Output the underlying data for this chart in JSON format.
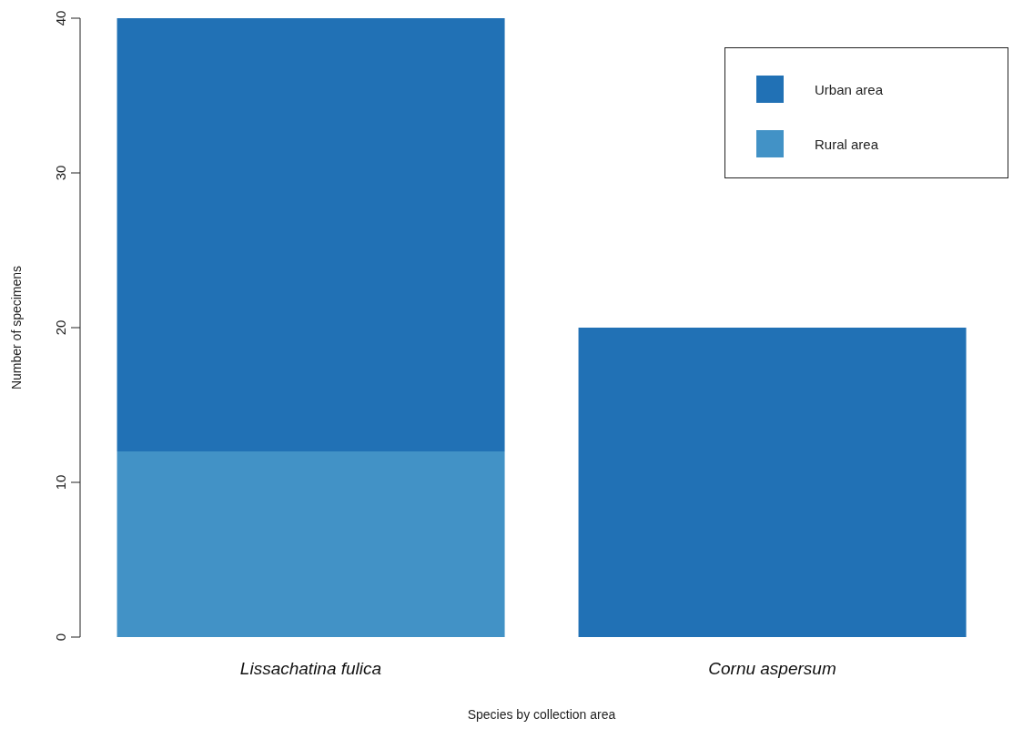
{
  "chart_data": {
    "type": "bar",
    "xlabel": "Species by collection area",
    "ylabel": "Number of specimens",
    "categories": [
      "Lissachatina fulica",
      "Cornu aspersum"
    ],
    "stacked": true,
    "series": [
      {
        "name": "Rural area",
        "color": "#4292c6",
        "values": [
          12,
          0
        ]
      },
      {
        "name": "Urban area",
        "color": "#2171b5",
        "values": [
          28,
          20
        ]
      }
    ],
    "ylim": [
      0,
      40
    ],
    "yticks": [
      0,
      10,
      20,
      30,
      40
    ],
    "legend": "top right"
  }
}
